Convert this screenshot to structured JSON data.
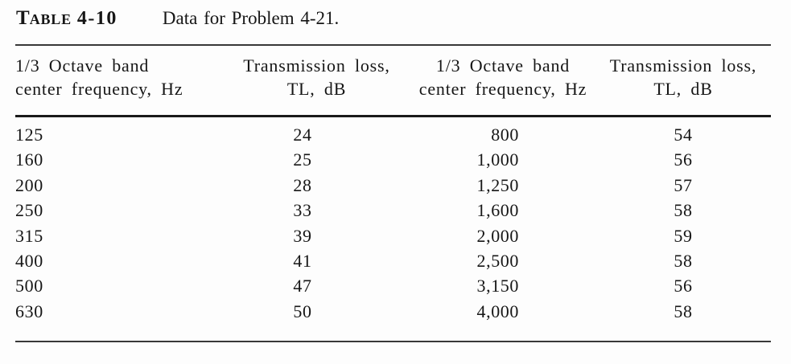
{
  "page": {
    "background": "#fdfdfd",
    "text_color": "#161616",
    "rule_color": "#1a1a1a"
  },
  "title": {
    "table_word_initial": "T",
    "table_word_rest": "ABLE",
    "table_number": "4-10",
    "caption": "Data for Problem 4-21."
  },
  "table": {
    "headers": [
      {
        "line1": "1/3 Octave band",
        "line2": "center frequency, Hz"
      },
      {
        "line1": "Transmission loss,",
        "line2": "TL, dB"
      },
      {
        "line1": "1/3 Octave band",
        "line2": "center frequency, Hz"
      },
      {
        "line1": "Transmission loss,",
        "line2": "TL, dB"
      }
    ],
    "rows": [
      [
        "125",
        "24",
        "800",
        "54"
      ],
      [
        "160",
        "25",
        "1,000",
        "56"
      ],
      [
        "200",
        "28",
        "1,250",
        "57"
      ],
      [
        "250",
        "33",
        "1,600",
        "58"
      ],
      [
        "315",
        "39",
        "2,000",
        "59"
      ],
      [
        "400",
        "41",
        "2,500",
        "58"
      ],
      [
        "500",
        "47",
        "3,150",
        "56"
      ],
      [
        "630",
        "50",
        "4,000",
        "58"
      ]
    ]
  },
  "chart_data": {
    "type": "table",
    "title": "TABLE 4-10 Data for Problem 4-21.",
    "series": [
      {
        "name": "1/3 Octave band center frequency, Hz",
        "values": [
          125,
          160,
          200,
          250,
          315,
          400,
          500,
          630,
          800,
          1000,
          1250,
          1600,
          2000,
          2500,
          3150,
          4000
        ]
      },
      {
        "name": "Transmission loss, TL, dB",
        "values": [
          24,
          25,
          28,
          33,
          39,
          41,
          47,
          50,
          54,
          56,
          57,
          58,
          59,
          58,
          56,
          58
        ]
      }
    ]
  }
}
